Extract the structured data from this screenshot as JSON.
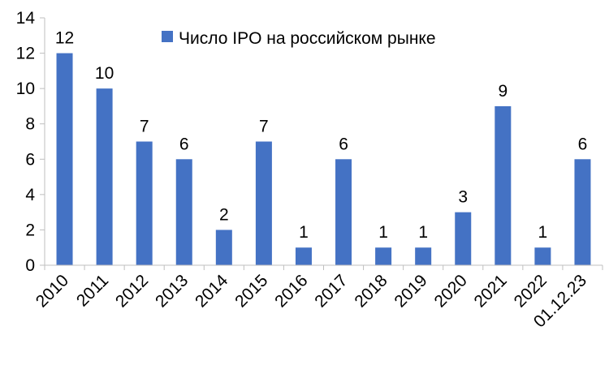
{
  "chart_data": {
    "type": "bar",
    "categories": [
      "2010",
      "2011",
      "2012",
      "2013",
      "2014",
      "2015",
      "2016",
      "2017",
      "2018",
      "2019",
      "2020",
      "2021",
      "2022",
      "01.12.23"
    ],
    "series": [
      {
        "name": "Число IPO на российском рынке",
        "values": [
          12,
          10,
          7,
          6,
          2,
          7,
          1,
          6,
          1,
          1,
          3,
          9,
          1,
          6
        ]
      }
    ],
    "yticks": [
      "0",
      "2",
      "4",
      "6",
      "8",
      "10",
      "12",
      "14"
    ],
    "ylim": [
      0,
      14
    ],
    "grid": false,
    "legend_position": "top-center",
    "colors": {
      "bar": "#4472C4",
      "axis": "#bfbfbf"
    }
  }
}
